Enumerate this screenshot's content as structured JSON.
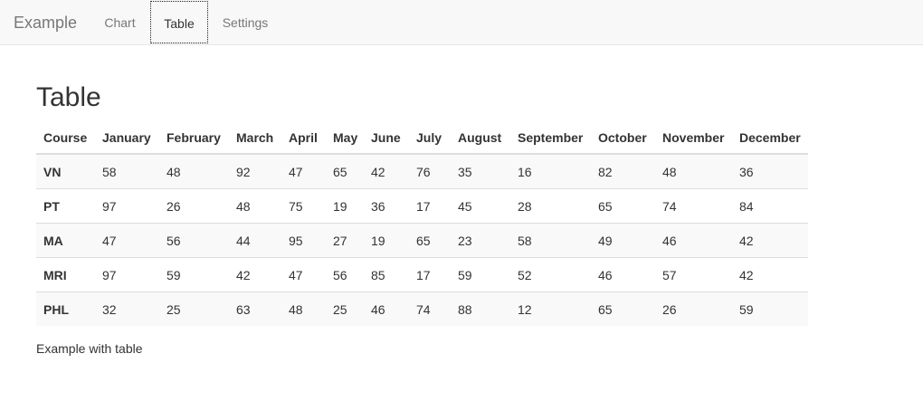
{
  "navbar": {
    "brand": "Example",
    "links": [
      {
        "label": "Chart",
        "active": false
      },
      {
        "label": "Table",
        "active": true
      },
      {
        "label": "Settings",
        "active": false
      }
    ]
  },
  "main": {
    "title": "Table",
    "table": {
      "headers": [
        "Course",
        "January",
        "February",
        "March",
        "April",
        "May",
        "June",
        "July",
        "August",
        "September",
        "October",
        "November",
        "December"
      ],
      "rows": [
        [
          "VN",
          "58",
          "48",
          "92",
          "47",
          "65",
          "42",
          "76",
          "35",
          "16",
          "82",
          "48",
          "36"
        ],
        [
          "PT",
          "97",
          "26",
          "48",
          "75",
          "19",
          "36",
          "17",
          "45",
          "28",
          "65",
          "74",
          "84"
        ],
        [
          "MA",
          "47",
          "56",
          "44",
          "95",
          "27",
          "19",
          "65",
          "23",
          "58",
          "49",
          "46",
          "42"
        ],
        [
          "MRI",
          "97",
          "59",
          "42",
          "47",
          "56",
          "85",
          "17",
          "59",
          "52",
          "46",
          "57",
          "42"
        ],
        [
          "PHL",
          "32",
          "25",
          "63",
          "48",
          "25",
          "46",
          "74",
          "88",
          "12",
          "65",
          "26",
          "59"
        ]
      ]
    },
    "caption": "Example with table"
  }
}
